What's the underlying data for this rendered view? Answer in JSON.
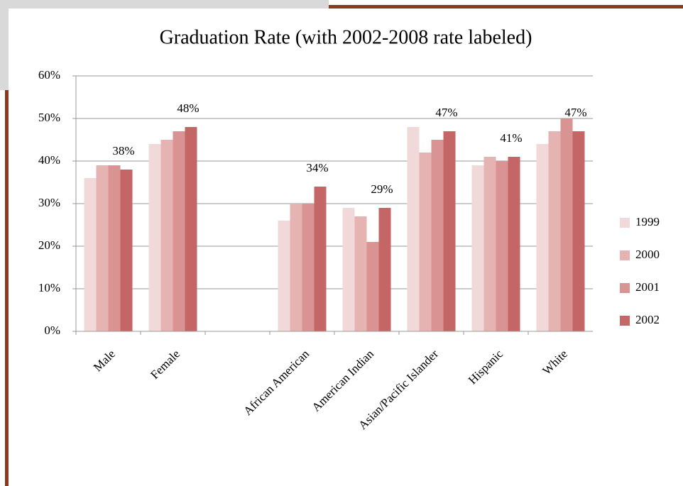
{
  "chart_data": {
    "type": "bar",
    "title": "Graduation Rate (with 2002-2008 rate labeled)",
    "categories": [
      "Male",
      "Female",
      null,
      "African American",
      "American Indian",
      "Asian/Pacific Islander",
      "Hispanic",
      "White"
    ],
    "series": [
      {
        "name": "1999",
        "color": "#f2d9d9",
        "values": [
          36,
          44,
          null,
          26,
          29,
          48,
          39,
          44
        ]
      },
      {
        "name": "2000",
        "color": "#e6b3b3",
        "values": [
          39,
          45,
          null,
          30,
          27,
          42,
          41,
          47
        ]
      },
      {
        "name": "2001",
        "color": "#d99393",
        "values": [
          39,
          47,
          null,
          30,
          21,
          45,
          40,
          50
        ]
      },
      {
        "name": "2002",
        "color": "#c46666",
        "values": [
          38,
          48,
          null,
          34,
          29,
          47,
          41,
          47
        ],
        "value_labels": [
          "38%",
          "48%",
          null,
          "34%",
          "29%",
          "47%",
          "41%",
          "47%"
        ]
      }
    ],
    "ylim": [
      0,
      60
    ],
    "yticks": [
      {
        "value": 0,
        "label": "0%"
      },
      {
        "value": 10,
        "label": "10%"
      },
      {
        "value": 20,
        "label": "20%"
      },
      {
        "value": 30,
        "label": "30%"
      },
      {
        "value": 40,
        "label": "40%"
      },
      {
        "value": 50,
        "label": "50%"
      },
      {
        "value": 60,
        "label": "60%"
      }
    ],
    "grid": true,
    "legend": "right"
  }
}
